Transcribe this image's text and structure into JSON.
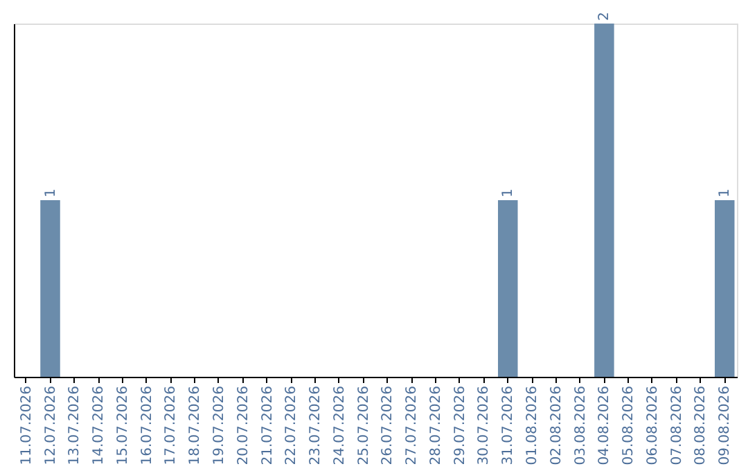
{
  "chart_data": {
    "type": "bar",
    "categories": [
      "11.07.2026",
      "12.07.2026",
      "13.07.2026",
      "14.07.2026",
      "15.07.2026",
      "16.07.2026",
      "17.07.2026",
      "18.07.2026",
      "19.07.2026",
      "20.07.2026",
      "21.07.2026",
      "22.07.2026",
      "23.07.2026",
      "24.07.2026",
      "25.07.2026",
      "26.07.2026",
      "27.07.2026",
      "28.07.2026",
      "29.07.2026",
      "30.07.2026",
      "31.07.2026",
      "01.08.2026",
      "02.08.2026",
      "03.08.2026",
      "04.08.2026",
      "05.08.2026",
      "06.08.2026",
      "07.08.2026",
      "08.08.2026",
      "09.08.2026"
    ],
    "values": [
      0,
      1,
      0,
      0,
      0,
      0,
      0,
      0,
      0,
      0,
      0,
      0,
      0,
      0,
      0,
      0,
      0,
      0,
      0,
      0,
      1,
      0,
      0,
      0,
      2,
      0,
      0,
      0,
      0,
      1
    ],
    "value_labels": [
      null,
      "1",
      null,
      null,
      null,
      null,
      null,
      null,
      null,
      null,
      null,
      null,
      null,
      null,
      null,
      null,
      null,
      null,
      null,
      null,
      "1",
      null,
      null,
      null,
      "2",
      null,
      null,
      null,
      null,
      "1"
    ],
    "color": "#6b8cab",
    "ylim": [
      0,
      2
    ],
    "tick_labels": "x",
    "grid": false
  }
}
